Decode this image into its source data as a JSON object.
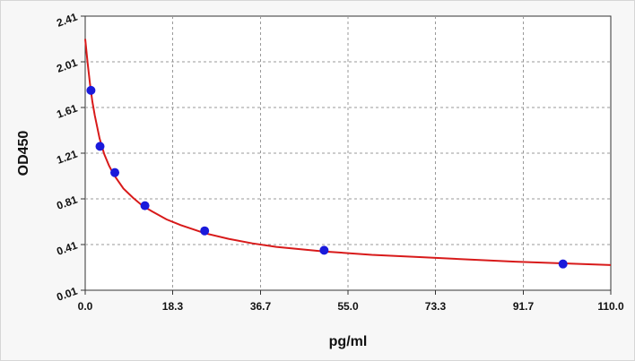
{
  "chart_data": {
    "type": "scatter",
    "title": "",
    "xlabel": "pg/ml",
    "ylabel": "OD450",
    "xlim": [
      0,
      110.0
    ],
    "ylim": [
      0.01,
      2.41
    ],
    "x_ticks": [
      0,
      18.3,
      36.7,
      55.0,
      73.3,
      91.7,
      110.0
    ],
    "x_tick_labels": [
      "0.0",
      "18.3",
      "36.7",
      "55.0",
      "73.3",
      "91.7",
      "110.0"
    ],
    "y_ticks": [
      0.01,
      0.41,
      0.81,
      1.21,
      1.61,
      2.01,
      2.41
    ],
    "y_tick_labels": [
      "0.01",
      "0.41",
      "0.81",
      "1.21",
      "1.61",
      "2.01",
      "2.41"
    ],
    "grid": true,
    "series": [
      {
        "type": "scatter",
        "color": "#1a1adb",
        "x": [
          1.2,
          3.1,
          6.2,
          12.5,
          25,
          50,
          100
        ],
        "y": [
          1.76,
          1.27,
          1.04,
          0.75,
          0.53,
          0.36,
          0.24
        ]
      },
      {
        "type": "line",
        "color": "#d81a1a",
        "x": [
          0,
          0.5,
          1,
          1.5,
          2,
          3,
          4,
          5,
          6,
          8,
          10,
          12,
          14,
          17,
          20,
          25,
          30,
          35,
          40,
          50,
          60,
          70,
          80,
          90,
          100,
          110
        ],
        "y": [
          2.21,
          2.0,
          1.82,
          1.66,
          1.54,
          1.34,
          1.2,
          1.1,
          1.02,
          0.9,
          0.82,
          0.75,
          0.7,
          0.63,
          0.58,
          0.51,
          0.46,
          0.42,
          0.39,
          0.35,
          0.32,
          0.3,
          0.28,
          0.26,
          0.245,
          0.23
        ]
      }
    ]
  }
}
